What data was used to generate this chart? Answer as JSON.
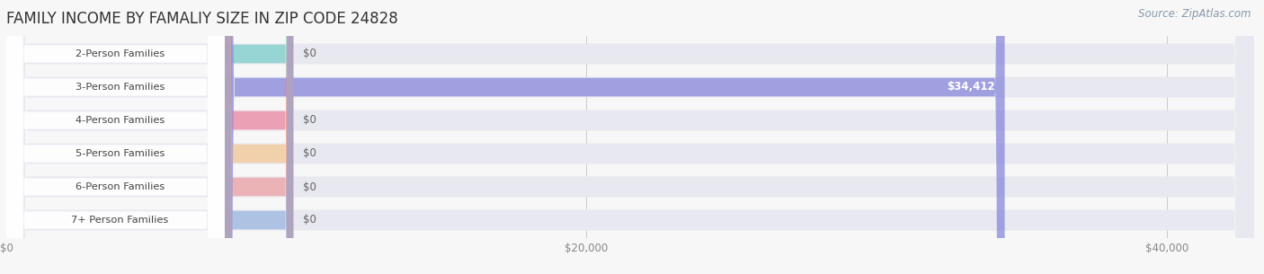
{
  "title": "FAMILY INCOME BY FAMALIY SIZE IN ZIP CODE 24828",
  "source": "Source: ZipAtlas.com",
  "categories": [
    "2-Person Families",
    "3-Person Families",
    "4-Person Families",
    "5-Person Families",
    "6-Person Families",
    "7+ Person Families"
  ],
  "values": [
    0,
    34412,
    0,
    0,
    0,
    0
  ],
  "bar_colors": [
    "#62c9c2",
    "#8888dd",
    "#f07090",
    "#f8c080",
    "#f09090",
    "#88aadd"
  ],
  "background_color": "#f7f7f7",
  "bar_background_color": "#e8e8f0",
  "xlim_max": 43000,
  "xticks": [
    0,
    20000,
    40000
  ],
  "xtick_labels": [
    "$0",
    "$20,000",
    "$40,000"
  ],
  "value_labels": [
    "$0",
    "$34,412",
    "$0",
    "$0",
    "$0",
    "$0"
  ],
  "title_fontsize": 12,
  "source_fontsize": 8.5,
  "fig_width": 14.06,
  "fig_height": 3.05
}
